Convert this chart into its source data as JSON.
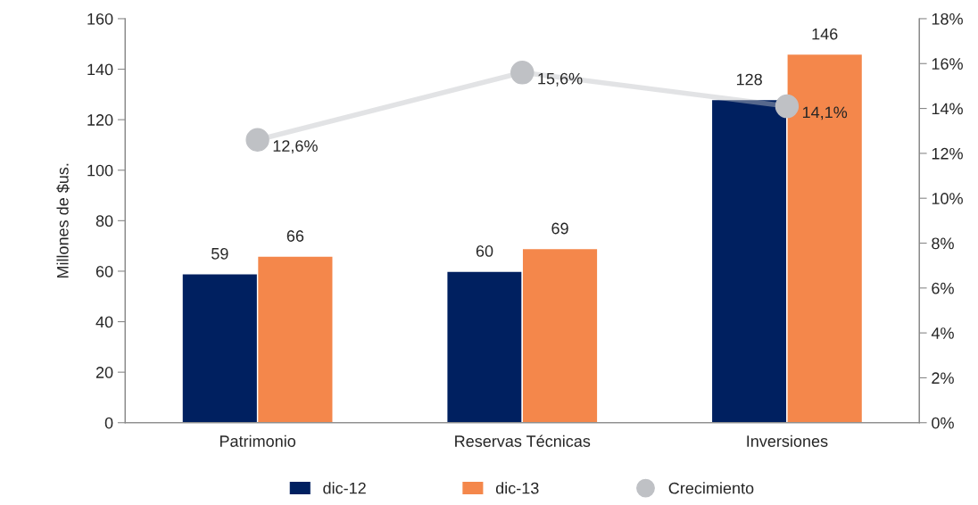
{
  "chart_data": {
    "type": "bar",
    "categories": [
      "Patrimonio",
      "Reservas Técnicas",
      "Inversiones"
    ],
    "ylabel": "Millones de $us.",
    "ylim": [
      0,
      160
    ],
    "yticks": [
      0,
      20,
      40,
      60,
      80,
      100,
      120,
      140,
      160
    ],
    "y2lim": [
      0,
      18
    ],
    "y2ticks": [
      {
        "value": 0,
        "label": "0%"
      },
      {
        "value": 2,
        "label": "2%"
      },
      {
        "value": 4,
        "label": "4%"
      },
      {
        "value": 6,
        "label": "6%"
      },
      {
        "value": 8,
        "label": "8%"
      },
      {
        "value": 10,
        "label": "10%"
      },
      {
        "value": 12,
        "label": "12%"
      },
      {
        "value": 14,
        "label": "14%"
      },
      {
        "value": 16,
        "label": "16%"
      },
      {
        "value": 18,
        "label": "18%"
      }
    ],
    "data_labels": true,
    "grid": false,
    "legend": "bottom",
    "series": [
      {
        "name": "dic-12",
        "color": "#002060",
        "values": [
          59,
          60,
          128
        ]
      },
      {
        "name": "dic-13",
        "color": "#f4874b",
        "values": [
          66,
          69,
          146
        ]
      },
      {
        "name": "Crecimiento",
        "type": "line",
        "axis": "y2",
        "color": "#bfc1c5",
        "marker": "circle",
        "values": [
          12.6,
          15.6,
          14.1
        ],
        "value_labels": [
          "12,6%",
          "15,6%",
          "14,1%"
        ]
      }
    ]
  }
}
